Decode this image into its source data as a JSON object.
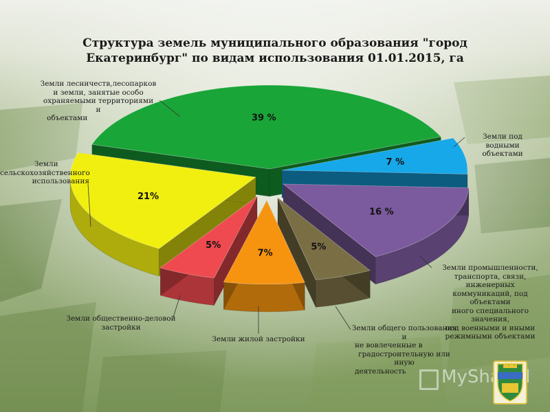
{
  "title_line1": "Структура земель муниципального образования \"город",
  "title_line2": "Екатеринбург\" по видам использования 01.01.2015, га",
  "chart_data": {
    "type": "pie",
    "title": "Структура земель муниципального образования \"город Екатеринбург\" по видам использования 01.01.2015, га",
    "slices": [
      {
        "label_lines": [
          "Земли лесничеств,лесопарков",
          "и земли, занятые особо",
          "охраняемыми территориями и",
          "объектами"
        ],
        "value": 39,
        "pct_label": "39 %",
        "color": "#1aa538"
      },
      {
        "label_lines": [
          "Земли под водными",
          "объектами"
        ],
        "value": 7,
        "pct_label": "7 %",
        "color": "#16a8e8"
      },
      {
        "label_lines": [
          "Земли промышленности,",
          "транспорта, связи, инженерных",
          "коммуникаций, под объектами",
          "иного специального значения,",
          "под военными и иными",
          "режимными объектами"
        ],
        "value": 16,
        "pct_label": "16 %",
        "color": "#7c5a9e"
      },
      {
        "label_lines": [
          "Земли общего пользования и",
          "не вовлеченные в",
          "градостроительную или иную",
          "деятельность"
        ],
        "value": 5,
        "pct_label": "5%",
        "color": "#7a6e45"
      },
      {
        "label_lines": [
          "Земли жилой застройки"
        ],
        "value": 7,
        "pct_label": "7%",
        "color": "#f7940f"
      },
      {
        "label_lines": [
          "Земли общественно-деловой",
          "застройки"
        ],
        "value": 5,
        "pct_label": "5%",
        "color": "#ef4a4f"
      },
      {
        "label_lines": [
          "Земли",
          "сельскохозяйственного",
          "использования"
        ],
        "value": 21,
        "pct_label": "21%",
        "color": "#f0ef10"
      }
    ],
    "legend": "none"
  },
  "watermark": "MyShared",
  "logo": "coat-of-arms-ekaterinburg"
}
